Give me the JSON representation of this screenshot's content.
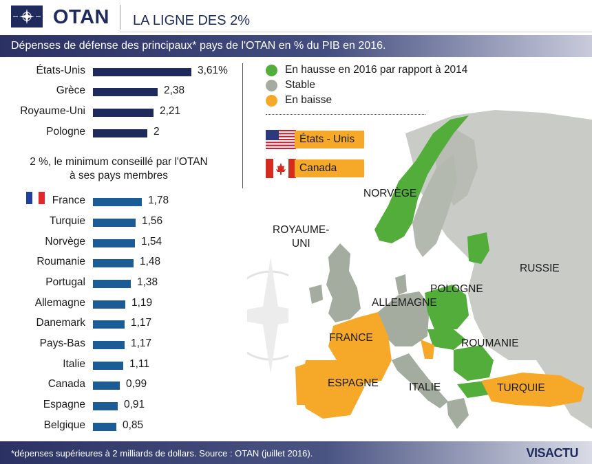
{
  "header": {
    "brand": "OTAN",
    "title": "LA LIGNE DES 2%"
  },
  "subtitle": "Dépenses de défense des principaux* pays de l'OTAN en % du PIB en 2016.",
  "footer": {
    "note": "*dépenses supérieures à 2 milliards de dollars. Source : OTAN (juillet 2016).",
    "credit": "VISACTU"
  },
  "threshold_note": {
    "line1": "2 %, le minimum conseillé par l'OTAN",
    "line2": "à ses pays membres"
  },
  "chart_data": {
    "type": "bar",
    "orientation": "horizontal",
    "unit": "% du PIB",
    "title": "Dépenses de défense des principaux* pays de l'OTAN en % du PIB en 2016.",
    "xlim": [
      0,
      3.61
    ],
    "series": [
      {
        "group": "above_2",
        "color": "#1f2a5c",
        "categories": [
          "États-Unis",
          "Grèce",
          "Royaume-Uni",
          "Pologne"
        ],
        "values": [
          3.61,
          2.38,
          2.21,
          2
        ],
        "labels": [
          "3,61%",
          "2,38",
          "2,21",
          "2"
        ]
      },
      {
        "group": "below_2",
        "color": "#1b5b96",
        "categories": [
          "France",
          "Turquie",
          "Norvège",
          "Roumanie",
          "Portugal",
          "Allemagne",
          "Danemark",
          "Pays-Bas",
          "Italie",
          "Canada",
          "Espagne",
          "Belgique"
        ],
        "values": [
          1.78,
          1.56,
          1.54,
          1.48,
          1.38,
          1.19,
          1.17,
          1.17,
          1.11,
          0.99,
          0.91,
          0.85
        ],
        "labels": [
          "1,78",
          "1,56",
          "1,54",
          "1,48",
          "1,38",
          "1,19",
          "1,17",
          "1,17",
          "1,11",
          "0,99",
          "0,91",
          "0,85"
        ]
      }
    ]
  },
  "legend": [
    {
      "label": "En hausse en 2016 par rapport à 2014",
      "color": "#52ad3b"
    },
    {
      "label": "Stable",
      "color": "#a4ac9f"
    },
    {
      "label": "En baisse",
      "color": "#f6a829"
    }
  ],
  "north_america": [
    {
      "label": "États - Unis",
      "flag": "us-flag"
    },
    {
      "label": "Canada",
      "flag": "canada-flag"
    }
  ],
  "map_labels": {
    "norvege": "NORVÈGE",
    "royaume_uni_1": "ROYAUME-",
    "royaume_uni_2": "UNI",
    "russie": "RUSSIE",
    "pologne": "POLOGNE",
    "allemagne": "ALLEMAGNE",
    "france": "FRANCE",
    "roumanie": "ROUMANIE",
    "espagne": "ESPAGNE",
    "italie": "ITALIE",
    "turquie": "TURQUIE"
  },
  "colors": {
    "navy": "#1e2b5c",
    "increase": "#52ad3b",
    "stable": "#a4ac9f",
    "decrease": "#f6a829",
    "non_member": "#c9ccc6"
  }
}
